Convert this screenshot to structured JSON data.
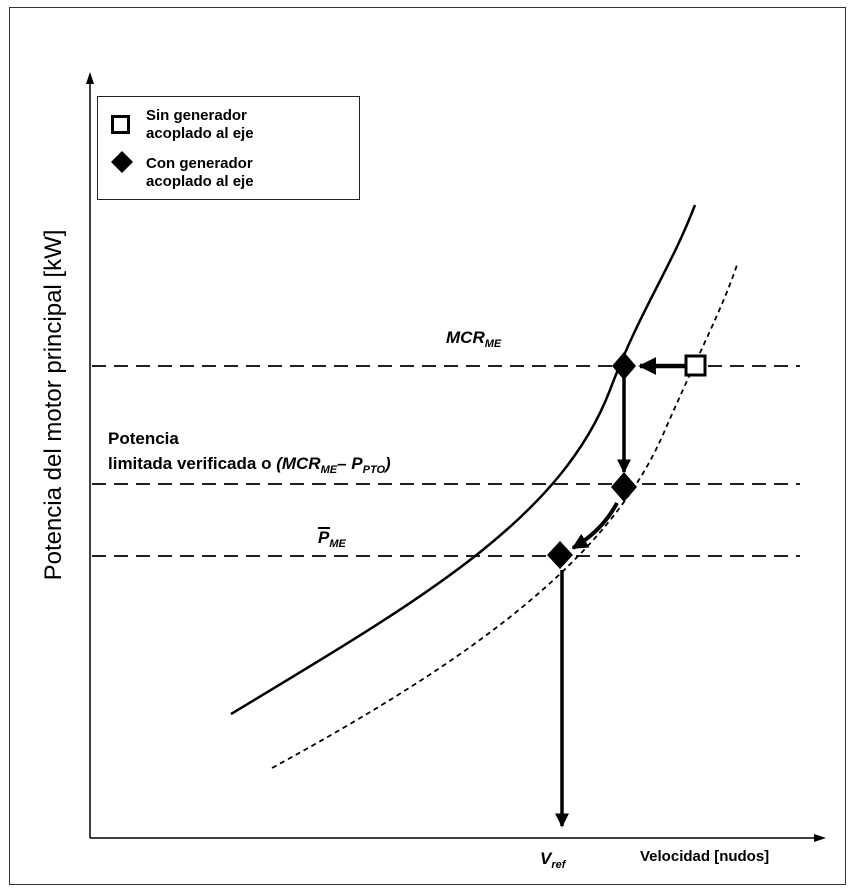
{
  "axes": {
    "y_title": "Potencia del motor principal [kW]",
    "x_title": "Velocidad [nudos]"
  },
  "legend": {
    "items": [
      {
        "marker": "open-square",
        "lines": [
          "Sin generador",
          "acoplado al eje"
        ]
      },
      {
        "marker": "filled-diamond",
        "lines": [
          "Con generador",
          "acoplado al eje"
        ]
      }
    ]
  },
  "levels": {
    "mcr": {
      "base": "MCR",
      "sub": "ME"
    },
    "limited": {
      "line1": "Potencia",
      "line2": "limitada verificada o",
      "expr_open": "(MCR",
      "expr_sub1": "ME",
      "expr_minus": "– P",
      "expr_sub2": "PTO",
      "expr_close": ")"
    },
    "pme": {
      "base": "P",
      "sub": "ME"
    }
  },
  "vref": {
    "base": "V",
    "sub": "ref"
  },
  "colors": {
    "ink": "#000000",
    "frame": "#333333"
  }
}
